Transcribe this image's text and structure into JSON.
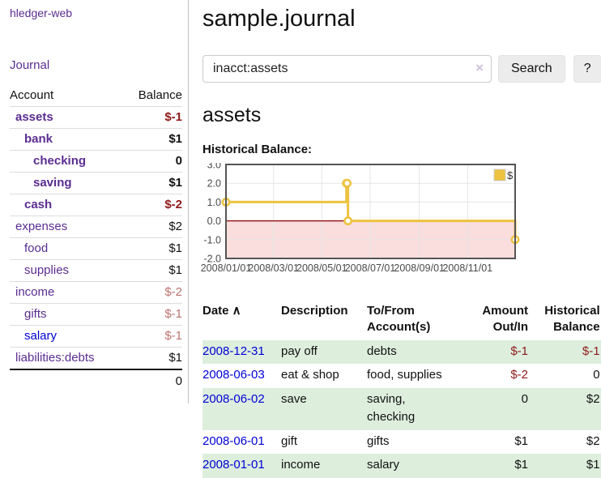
{
  "colors": {
    "link-purple": "#5b2d91",
    "link-blue": "#0000d6",
    "neg-strong": "#8f1a1a",
    "neg-muted": "#bd7371",
    "stripe-green": "#ddeedd",
    "divider": "#c0c0c0",
    "btn-bg": "#ececec"
  },
  "sidebar": {
    "app_title": "hledger-web",
    "journal_link": "Journal",
    "accounts_table": {
      "headers": {
        "account": "Account",
        "balance": "Balance"
      },
      "rows": [
        {
          "name": "assets",
          "depth": 1,
          "bold": true,
          "balance": "$-1",
          "balance_style": "neg",
          "link_style": "purple"
        },
        {
          "name": "bank",
          "depth": 2,
          "bold": true,
          "balance": "$1",
          "balance_style": "",
          "link_style": "purple"
        },
        {
          "name": "checking",
          "depth": 3,
          "bold": true,
          "balance": "0",
          "balance_style": "",
          "link_style": "purple"
        },
        {
          "name": "saving",
          "depth": 3,
          "bold": true,
          "balance": "$1",
          "balance_style": "",
          "link_style": "purple"
        },
        {
          "name": "cash",
          "depth": 2,
          "bold": true,
          "balance": "$-2",
          "balance_style": "neg",
          "link_style": "purple"
        },
        {
          "name": "expenses",
          "depth": 1,
          "bold": false,
          "balance": "$2",
          "balance_style": "",
          "link_style": "purple"
        },
        {
          "name": "food",
          "depth": 2,
          "bold": false,
          "balance": "$1",
          "balance_style": "",
          "link_style": "purple"
        },
        {
          "name": "supplies",
          "depth": 2,
          "bold": false,
          "balance": "$1",
          "balance_style": "",
          "link_style": "purple"
        },
        {
          "name": "income",
          "depth": 1,
          "bold": false,
          "balance": "$-2",
          "balance_style": "neg-muted",
          "link_style": "purple"
        },
        {
          "name": "gifts",
          "depth": 2,
          "bold": false,
          "balance": "$-1",
          "balance_style": "neg-muted",
          "link_style": "purple"
        },
        {
          "name": "salary",
          "depth": 2,
          "bold": false,
          "balance": "$-1",
          "balance_style": "neg-muted",
          "link_style": "blue"
        },
        {
          "name": "liabilities:debts",
          "depth": 1,
          "bold": false,
          "balance": "$1",
          "balance_style": "",
          "link_style": "purple"
        }
      ],
      "total": "0"
    }
  },
  "main": {
    "title": "sample.journal",
    "search": {
      "query": "inacct:assets",
      "clear_icon": "×",
      "button_label": "Search",
      "help_label": "?"
    },
    "section_heading": "assets",
    "chart_label": "Historical Balance:"
  },
  "chart_data": {
    "type": "line",
    "step": true,
    "title": "Historical Balance of assets",
    "series": [
      {
        "name": "$",
        "color": "#edc240",
        "points": [
          [
            "2008-01-01",
            1
          ],
          [
            "2008-06-01",
            2
          ],
          [
            "2008-06-02",
            2
          ],
          [
            "2008-06-03",
            0
          ],
          [
            "2008-12-31",
            -1
          ]
        ]
      }
    ],
    "x_range": [
      "2008-01-01",
      "2008-12-31"
    ],
    "x_tick_labels": [
      "2008/01/01",
      "2008/03/01",
      "2008/05/01",
      "2008/07/01",
      "2008/09/01",
      "2008/11/01"
    ],
    "ylim": [
      -2,
      3
    ],
    "y_tick_labels": [
      "3.0",
      "2.0",
      "1.0",
      "0.0",
      "-1.0",
      "-2.0"
    ],
    "grid": true,
    "grid_color": "#e5e5e5",
    "border_color": "#545454",
    "zero_line_color": "#8b0000",
    "negative_region_color": "#fadddd",
    "legend": {
      "position": "top-right",
      "label": "$",
      "swatch_color": "#edc240",
      "swatch_border": "#cccccc"
    }
  },
  "register": {
    "columns": [
      {
        "label": "Date",
        "sort_indicator": "∧",
        "align": "left"
      },
      {
        "label": "Description",
        "align": "left"
      },
      {
        "label": "To/From Account(s)",
        "align": "left"
      },
      {
        "label": "Amount Out/In",
        "align": "right"
      },
      {
        "label": "Historical Balance",
        "align": "right"
      }
    ],
    "rows": [
      {
        "date": "2008-12-31",
        "description": "pay off",
        "accounts": "debts",
        "wrap": false,
        "amount": "$-1",
        "amount_negative": true,
        "balance": "$-1",
        "balance_negative": true
      },
      {
        "date": "2008-06-03",
        "description": "eat & shop",
        "accounts": "food, supplies",
        "wrap": false,
        "amount": "$-2",
        "amount_negative": true,
        "balance": "0",
        "balance_negative": false
      },
      {
        "date": "2008-06-02",
        "description": "save",
        "accounts": "saving, checking",
        "wrap": true,
        "amount": "0",
        "amount_negative": false,
        "balance": "$2",
        "balance_negative": false
      },
      {
        "date": "2008-06-01",
        "description": "gift",
        "accounts": "gifts",
        "wrap": false,
        "amount": "$1",
        "amount_negative": false,
        "balance": "$2",
        "balance_negative": false
      },
      {
        "date": "2008-01-01",
        "description": "income",
        "accounts": "salary",
        "wrap": false,
        "amount": "$1",
        "amount_negative": false,
        "balance": "$1",
        "balance_negative": false
      }
    ]
  }
}
